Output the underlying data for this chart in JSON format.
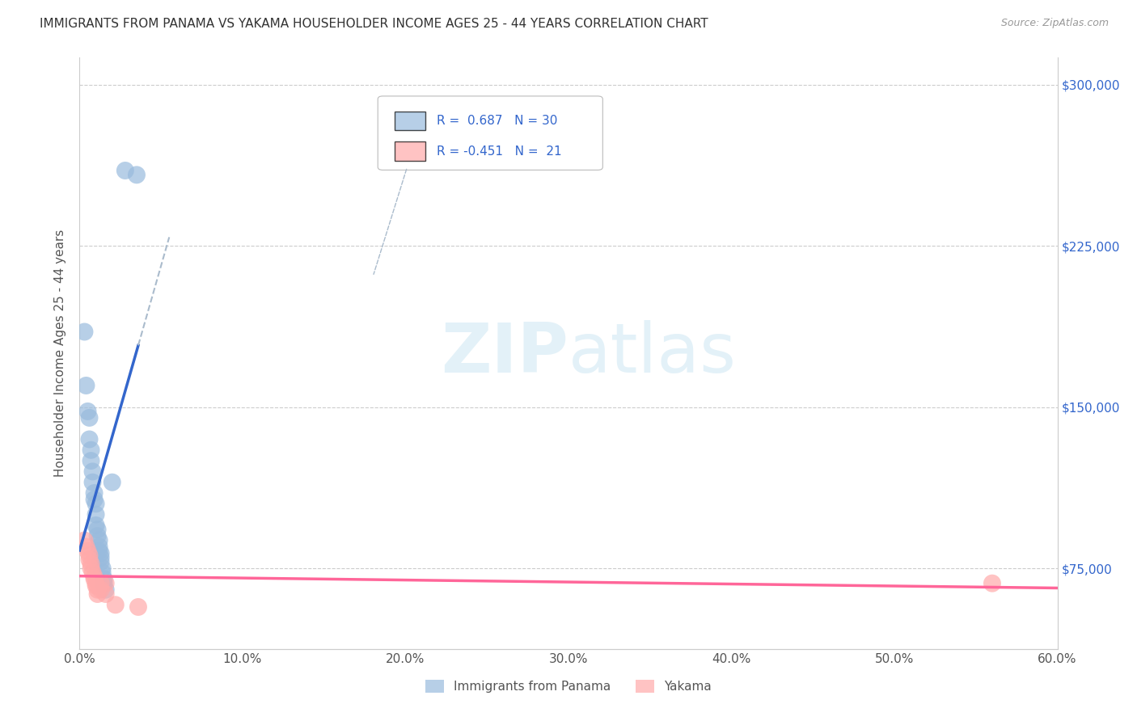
{
  "title": "IMMIGRANTS FROM PANAMA VS YAKAMA HOUSEHOLDER INCOME AGES 25 - 44 YEARS CORRELATION CHART",
  "source": "Source: ZipAtlas.com",
  "ylabel": "Householder Income Ages 25 - 44 years",
  "xlabel_ticks": [
    "0.0%",
    "10.0%",
    "20.0%",
    "30.0%",
    "40.0%",
    "50.0%",
    "60.0%"
  ],
  "ylabel_ticks": [
    "$75,000",
    "$150,000",
    "$225,000",
    "$300,000"
  ],
  "xlim": [
    0.0,
    0.6
  ],
  "ylim": [
    37500,
    312500
  ],
  "yticks": [
    75000,
    150000,
    225000,
    300000
  ],
  "r_panama": 0.687,
  "n_panama": 30,
  "r_yakama": -0.451,
  "n_yakama": 21,
  "legend_labels": [
    "Immigrants from Panama",
    "Yakama"
  ],
  "watermark_zip": "ZIP",
  "watermark_atlas": "atlas",
  "blue_color": "#99BBDD",
  "pink_color": "#FFAAAA",
  "blue_line_color": "#3366CC",
  "pink_line_color": "#FF6699",
  "panama_points": [
    [
      0.003,
      185000
    ],
    [
      0.004,
      160000
    ],
    [
      0.005,
      148000
    ],
    [
      0.006,
      145000
    ],
    [
      0.006,
      135000
    ],
    [
      0.007,
      130000
    ],
    [
      0.007,
      125000
    ],
    [
      0.008,
      120000
    ],
    [
      0.008,
      115000
    ],
    [
      0.009,
      110000
    ],
    [
      0.009,
      107000
    ],
    [
      0.01,
      105000
    ],
    [
      0.01,
      100000
    ],
    [
      0.01,
      95000
    ],
    [
      0.011,
      93000
    ],
    [
      0.011,
      90000
    ],
    [
      0.012,
      88000
    ],
    [
      0.012,
      85000
    ],
    [
      0.012,
      83000
    ],
    [
      0.013,
      82000
    ],
    [
      0.013,
      80000
    ],
    [
      0.013,
      78000
    ],
    [
      0.014,
      75000
    ],
    [
      0.014,
      73000
    ],
    [
      0.015,
      70000
    ],
    [
      0.015,
      68000
    ],
    [
      0.016,
      65000
    ],
    [
      0.02,
      115000
    ],
    [
      0.028,
      260000
    ],
    [
      0.035,
      258000
    ]
  ],
  "yakama_points": [
    [
      0.003,
      88000
    ],
    [
      0.004,
      85000
    ],
    [
      0.005,
      83000
    ],
    [
      0.006,
      81000
    ],
    [
      0.006,
      79000
    ],
    [
      0.007,
      77000
    ],
    [
      0.007,
      75000
    ],
    [
      0.008,
      73000
    ],
    [
      0.009,
      71000
    ],
    [
      0.009,
      70000
    ],
    [
      0.01,
      68000
    ],
    [
      0.01,
      67000
    ],
    [
      0.011,
      65000
    ],
    [
      0.011,
      63000
    ],
    [
      0.013,
      68000
    ],
    [
      0.013,
      65000
    ],
    [
      0.016,
      68000
    ],
    [
      0.016,
      63000
    ],
    [
      0.022,
      58000
    ],
    [
      0.036,
      57000
    ],
    [
      0.56,
      68000
    ]
  ]
}
